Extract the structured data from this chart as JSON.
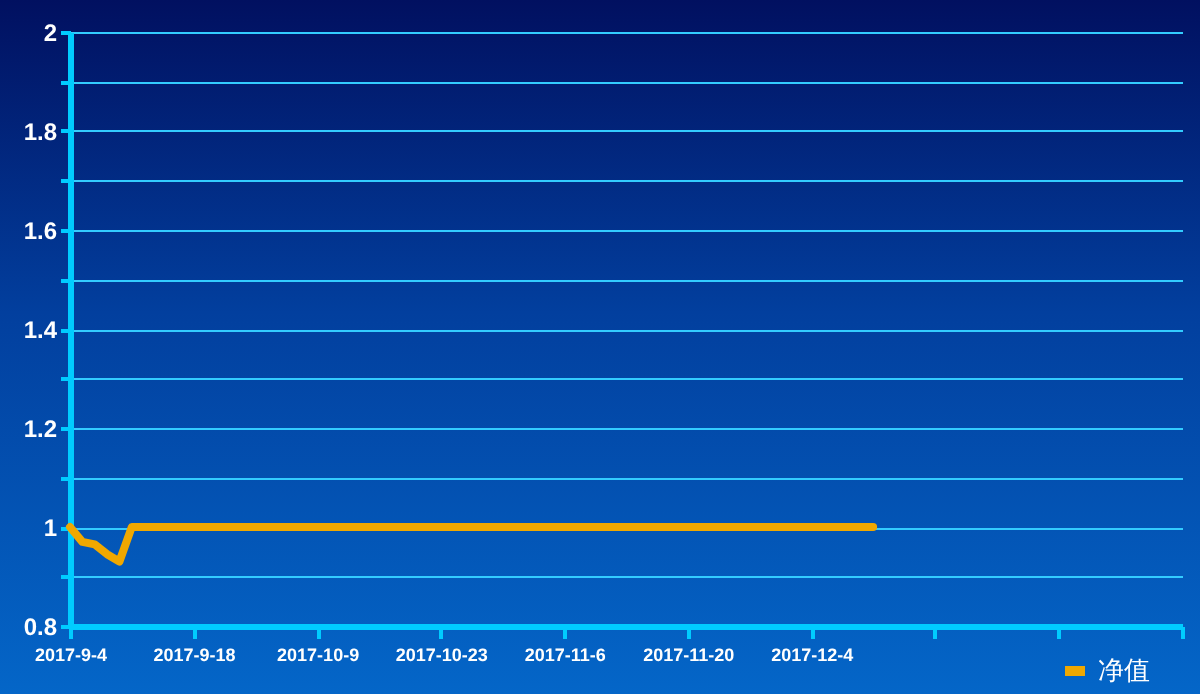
{
  "chart_data": {
    "type": "line",
    "categories": [
      "2017-9-4",
      null,
      null,
      null,
      null,
      null,
      null,
      null,
      null,
      null,
      "2017-9-18",
      null,
      null,
      null,
      null,
      null,
      null,
      null,
      null,
      null,
      "2017-10-9",
      null,
      null,
      null,
      null,
      null,
      null,
      null,
      null,
      null,
      "2017-10-23",
      null,
      null,
      null,
      null,
      null,
      null,
      null,
      null,
      null,
      "2017-11-6",
      null,
      null,
      null,
      null,
      null,
      null,
      null,
      null,
      null,
      "2017-11-20",
      null,
      null,
      null,
      null,
      null,
      null,
      null,
      null,
      null,
      "2017-12-4",
      null,
      null,
      null,
      null,
      null,
      null,
      null,
      null,
      null,
      null,
      null,
      null,
      null,
      null,
      null,
      null,
      null,
      null,
      null,
      null,
      null,
      null,
      null,
      null,
      null,
      null,
      null,
      null,
      null,
      null
    ],
    "series": [
      {
        "name": "净值",
        "color": "#f0a800",
        "values": [
          1,
          0.97,
          0.965,
          0.945,
          0.93,
          1,
          1,
          1,
          1,
          1,
          1,
          1,
          1,
          1,
          1,
          1,
          1,
          1,
          1,
          1,
          1,
          1,
          1,
          1,
          1,
          1,
          1,
          1,
          1,
          1,
          1,
          1,
          1,
          1,
          1,
          1,
          1,
          1,
          1,
          1,
          1,
          1,
          1,
          1,
          1,
          1,
          1,
          1,
          1,
          1,
          1,
          1,
          1,
          1,
          1,
          1,
          1,
          1,
          1,
          1,
          1,
          1,
          1,
          1,
          1,
          1,
          null,
          null,
          null,
          null,
          null,
          null,
          null,
          null,
          null,
          null,
          null,
          null,
          null,
          null,
          null,
          null,
          null,
          null,
          null,
          null,
          null,
          null,
          null,
          null,
          null
        ]
      }
    ],
    "ylim": [
      0.8,
      2
    ],
    "yticks": [
      0.8,
      {
        "value": 0.9,
        "label": null
      },
      1,
      {
        "value": 1.1,
        "label": null
      },
      1.2,
      {
        "value": 1.3,
        "label": null
      },
      1.4,
      {
        "value": 1.5,
        "label": null
      },
      1.6,
      {
        "value": 1.7,
        "label": null
      },
      1.8,
      {
        "value": 1.9,
        "label": null
      },
      2
    ],
    "grid": "y",
    "legend": "bottom right",
    "marker": "none",
    "line_style": "solid"
  }
}
